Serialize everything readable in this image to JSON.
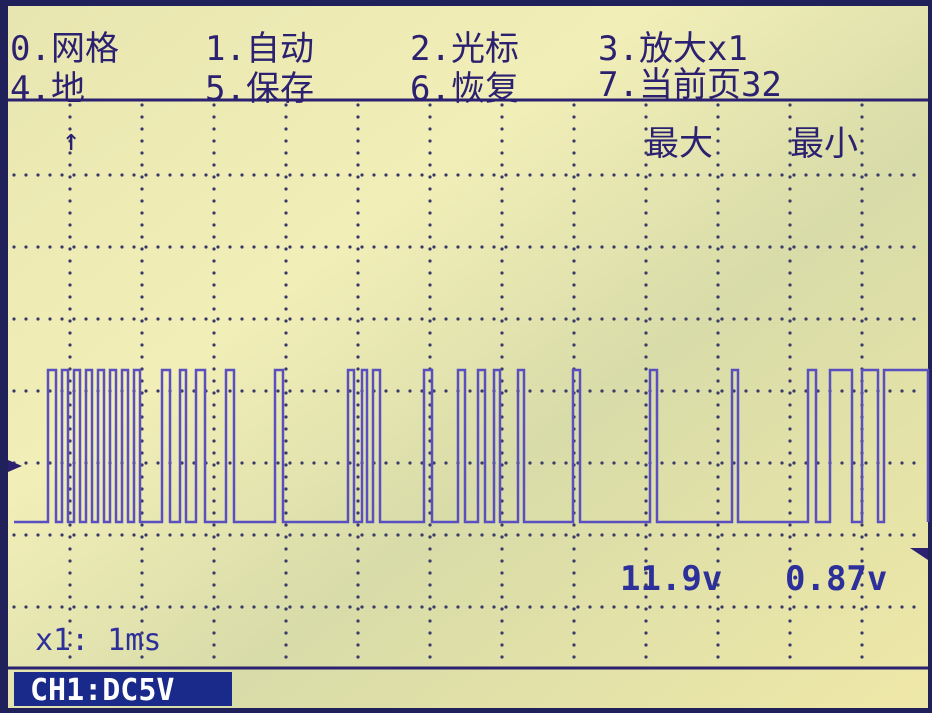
{
  "menu": {
    "items": [
      "0.网格",
      "1.自动",
      "2.光标",
      "3.放大x1",
      "4.地",
      "5.保存",
      "6.恢复",
      "7.当前页32"
    ]
  },
  "readout": {
    "max_label": "最大",
    "min_label": "最小",
    "max_value": "11.9v",
    "min_value": "0.87v"
  },
  "timebase": "x1: 1ms",
  "channel": "CH1:DC5V"
}
